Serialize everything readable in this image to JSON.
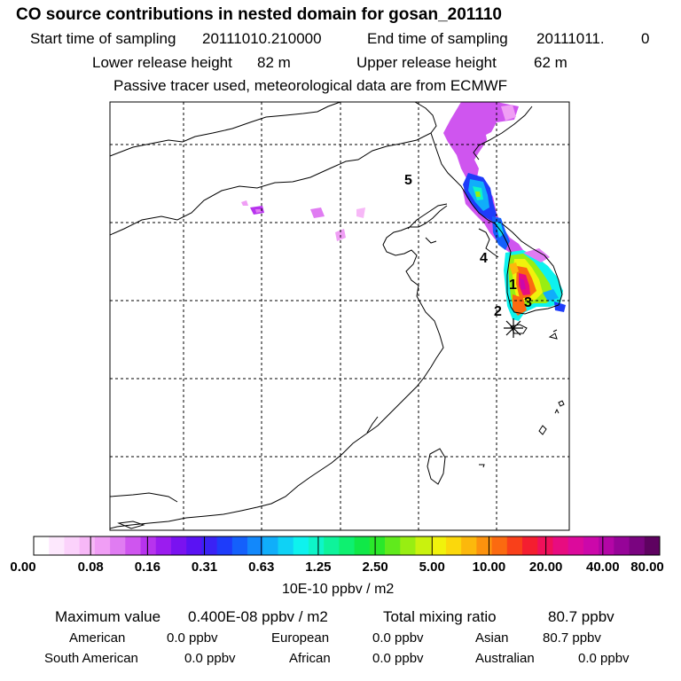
{
  "header": {
    "title": "CO  source contributions in nested domain for gosan_201110",
    "start_label": "Start time of sampling",
    "start_value": "20111010.210000",
    "end_label": "End time of sampling",
    "end_value": "20111011.",
    "end_value2": "0",
    "lower_label": "Lower release height",
    "lower_value": "82 m",
    "upper_label": "Upper release height",
    "upper_value": "62 m",
    "tracer_note": "Passive tracer used, meteorological data are from ECMWF"
  },
  "map": {
    "markers": [
      "1",
      "2",
      "3",
      "4",
      "5"
    ],
    "receptor_symbol": "gosan-receptor"
  },
  "colorbar": {
    "labels": [
      "0.00",
      "0.08",
      "0.16",
      "0.31",
      "0.63",
      "1.25",
      "2.50",
      "5.00",
      "10.00",
      "20.00",
      "40.00",
      "80.00"
    ],
    "unit": "10E-10 ppbv / m2",
    "colors": [
      "#ffffff",
      "#fde8fd",
      "#fbd2fb",
      "#f7b8f7",
      "#f09ef5",
      "#e07cf2",
      "#cf55ef",
      "#b733ee",
      "#9b1cef",
      "#7a12f0",
      "#5a12f3",
      "#3a22f5",
      "#1e3cfa",
      "#1460fb",
      "#1288fb",
      "#10aefa",
      "#0fd2f5",
      "#0ef2ee",
      "#0ef5c8",
      "#0ef39b",
      "#0ef070",
      "#10e848",
      "#2ae82a",
      "#60ea1c",
      "#98ee12",
      "#c9f20e",
      "#f1f20c",
      "#fbd80c",
      "#fcb80c",
      "#fc920e",
      "#fb6a10",
      "#f9401a",
      "#f41e30",
      "#f0105a",
      "#e80c80",
      "#dc0a9c",
      "#cc08aa",
      "#b306a6",
      "#960498",
      "#7a0480",
      "#5e0260"
    ]
  },
  "stats": {
    "max_label": "Maximum value",
    "max_value": "0.400E-08 ppbv / m2",
    "total_label": "Total mixing ratio",
    "total_value": "80.7 ppbv",
    "regions": [
      {
        "name": "American",
        "value": "0.0 ppbv"
      },
      {
        "name": "European",
        "value": "0.0 ppbv"
      },
      {
        "name": "Asian",
        "value": "80.7 ppbv"
      },
      {
        "name": "South American",
        "value": "0.0 ppbv"
      },
      {
        "name": "African",
        "value": "0.0 ppbv"
      },
      {
        "name": "Australian",
        "value": "0.0 ppbv"
      }
    ]
  }
}
